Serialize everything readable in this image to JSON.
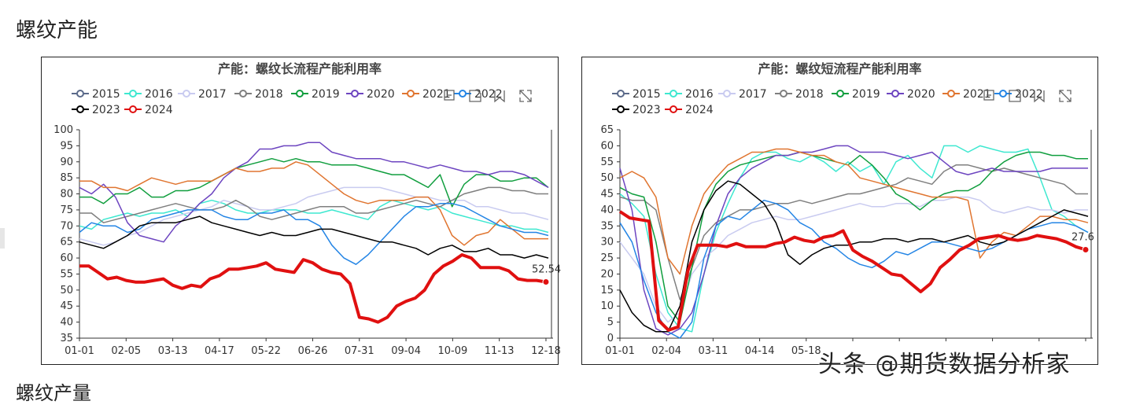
{
  "page_title": "螺纹产能",
  "next_section_title": "螺纹产量",
  "watermark": "头条 @期货数据分析家",
  "toolbox_icons": [
    "restore-icon",
    "save-image-icon",
    "data-zoom-icon",
    "fullscreen-icon"
  ],
  "colors": {
    "2015": "#5b6a8a",
    "2016": "#3ee8d0",
    "2017": "#c9cbf0",
    "2018": "#7f7f7f",
    "2019": "#109e3e",
    "2020": "#6d45c0",
    "2021": "#e07530",
    "2022": "#2485e5",
    "2023": "#000000",
    "2024": "#e01010"
  },
  "chart_data": [
    {
      "type": "line",
      "title": "产能：螺纹长流程产能利用率",
      "x_ticks": [
        "01-01",
        "02-05",
        "03-13",
        "04-17",
        "05-22",
        "06-26",
        "07-31",
        "09-04",
        "10-09",
        "11-13",
        "12-18"
      ],
      "ylim": [
        35,
        100
      ],
      "y_ticks": [
        35,
        40,
        45,
        50,
        55,
        60,
        65,
        70,
        75,
        80,
        85,
        90,
        95,
        100
      ],
      "legend": [
        "2015",
        "2016",
        "2017",
        "2018",
        "2019",
        "2020",
        "2021",
        "2022",
        "2023",
        "2024"
      ],
      "end_label": "52.54",
      "series": [
        {
          "name": "2015",
          "values": []
        },
        {
          "name": "2016",
          "values": [
            70,
            69,
            72,
            73,
            74,
            73,
            74,
            74,
            75,
            73,
            77,
            78,
            77,
            75,
            74,
            74,
            75,
            75,
            75,
            74,
            74,
            75,
            74,
            73,
            72,
            76,
            78,
            77,
            76,
            75,
            76,
            74,
            73,
            72,
            71,
            70,
            70,
            69,
            69,
            68
          ]
        },
        {
          "name": "2017",
          "values": [
            66,
            65,
            64,
            65,
            67,
            68,
            70,
            72,
            73,
            74,
            75,
            76,
            78,
            77,
            76,
            75,
            75,
            76,
            77,
            79,
            80,
            81,
            82,
            82,
            82,
            82,
            81,
            80,
            79,
            79,
            78,
            78,
            78,
            76,
            76,
            75,
            74,
            74,
            73,
            72
          ]
        },
        {
          "name": "2018",
          "values": [
            74,
            74,
            71,
            72,
            73,
            74,
            75,
            76,
            77,
            76,
            75,
            75,
            76,
            78,
            76,
            73,
            72,
            73,
            74,
            75,
            76,
            76,
            76,
            74,
            74,
            75,
            76,
            77,
            78,
            77,
            76,
            78,
            80,
            81,
            82,
            82,
            81,
            81,
            80,
            80
          ]
        },
        {
          "name": "2019",
          "values": [
            79,
            79,
            77,
            80,
            80,
            82,
            79,
            79,
            81,
            81,
            82,
            84,
            86,
            88,
            89,
            90,
            91,
            90,
            91,
            90,
            90,
            89,
            89,
            89,
            88,
            87,
            86,
            86,
            84,
            82,
            86,
            76,
            83,
            86,
            86,
            84,
            84,
            85,
            85,
            82
          ]
        },
        {
          "name": "2020",
          "values": [
            82,
            80,
            83,
            79,
            71,
            67,
            66,
            65,
            70,
            73,
            77,
            80,
            85,
            88,
            90,
            94,
            94,
            95,
            95,
            96,
            96,
            93,
            92,
            91,
            91,
            91,
            90,
            90,
            89,
            88,
            89,
            88,
            87,
            87,
            86,
            87,
            87,
            86,
            84,
            82
          ]
        },
        {
          "name": "2021",
          "values": [
            84,
            84,
            82,
            82,
            81,
            83,
            85,
            84,
            83,
            84,
            84,
            84,
            86,
            88,
            87,
            87,
            88,
            88,
            90,
            89,
            86,
            83,
            80,
            78,
            77,
            78,
            78,
            78,
            79,
            79,
            75,
            67,
            64,
            67,
            68,
            72,
            69,
            66,
            66,
            66
          ]
        },
        {
          "name": "2022",
          "values": [
            68,
            71,
            70,
            70,
            68,
            69,
            72,
            73,
            74,
            75,
            75,
            75,
            73,
            72,
            72,
            74,
            74,
            75,
            72,
            72,
            70,
            64,
            60,
            58,
            61,
            65,
            69,
            73,
            76,
            76,
            77,
            77,
            76,
            74,
            72,
            70,
            69,
            68,
            68,
            67
          ]
        },
        {
          "name": "2023",
          "values": [
            65,
            64,
            63,
            65,
            67,
            70,
            71,
            71,
            71,
            72,
            73,
            71,
            70,
            69,
            68,
            67,
            68,
            67,
            67,
            68,
            69,
            69,
            68,
            67,
            66,
            65,
            65,
            64,
            63,
            61,
            63,
            64,
            62,
            62,
            63,
            61,
            61,
            60,
            61,
            60
          ]
        },
        {
          "name": "2024",
          "values": [
            57.5,
            57.5,
            55.5,
            53.5,
            54,
            53,
            52.5,
            52.5,
            53,
            53.5,
            51.5,
            50.5,
            51.5,
            51,
            53.5,
            54.5,
            56.5,
            56.5,
            57,
            57.5,
            58.5,
            56.5,
            56,
            55.5,
            59.5,
            58.5,
            56.5,
            55.5,
            55,
            52,
            41.5,
            41,
            40,
            41.5,
            45,
            46.5,
            47.5,
            50,
            55,
            57.5,
            59,
            61,
            60,
            57,
            57,
            57,
            56,
            53.5,
            53,
            53,
            52.54
          ]
        }
      ]
    },
    {
      "type": "line",
      "title": "产能：螺纹短流程产能利用率",
      "x_ticks": [
        "01-01",
        "02-04",
        "03-11",
        "04-14",
        "05-18",
        "",
        "",
        "",
        "",
        "",
        ""
      ],
      "ylim": [
        0,
        65
      ],
      "y_ticks": [
        0,
        5,
        10,
        15,
        20,
        25,
        30,
        35,
        40,
        45,
        50,
        55,
        60,
        65
      ],
      "legend": [
        "2015",
        "2016",
        "2017",
        "2018",
        "2019",
        "2020",
        "2021",
        "2022",
        "2023",
        "2024"
      ],
      "end_label": "27.6",
      "series": [
        {
          "name": "2015",
          "values": []
        },
        {
          "name": "2016",
          "values": [
            45,
            42,
            38,
            20,
            8,
            3,
            2,
            20,
            33,
            42,
            50,
            56,
            58,
            58,
            56,
            55,
            57,
            55,
            52,
            55,
            52,
            54,
            48,
            55,
            57,
            53,
            50,
            60,
            60,
            58,
            60,
            59,
            58,
            58,
            59,
            50,
            40,
            38,
            35,
            33
          ]
        },
        {
          "name": "2017",
          "values": [
            30,
            25,
            20,
            10,
            5,
            8,
            20,
            25,
            28,
            32,
            34,
            36,
            37,
            38,
            37,
            37,
            38,
            39,
            40,
            41,
            42,
            41,
            41,
            42,
            42,
            41,
            43,
            43,
            44,
            44,
            43,
            40,
            39,
            40,
            41,
            40,
            40,
            39,
            40,
            40
          ]
        },
        {
          "name": "2018",
          "values": [
            44,
            43,
            43,
            40,
            25,
            12,
            22,
            32,
            36,
            38,
            40,
            40,
            41,
            42,
            42,
            43,
            42,
            43,
            44,
            45,
            45,
            46,
            47,
            48,
            50,
            49,
            48,
            52,
            54,
            54,
            53,
            52,
            53,
            52,
            51,
            50,
            49,
            48,
            45,
            45
          ]
        },
        {
          "name": "2019",
          "values": [
            47,
            45,
            44,
            30,
            10,
            5,
            22,
            40,
            48,
            52,
            54,
            55,
            56,
            57,
            57,
            58,
            57,
            56,
            55,
            54,
            57,
            54,
            50,
            45,
            43,
            40,
            43,
            45,
            46,
            46,
            48,
            52,
            55,
            57,
            58,
            58,
            57,
            57,
            56,
            56
          ]
        },
        {
          "name": "2020",
          "values": [
            53,
            40,
            15,
            3,
            1,
            3,
            8,
            20,
            35,
            45,
            50,
            53,
            55,
            57,
            57,
            58,
            58,
            59,
            60,
            60,
            58,
            58,
            58,
            57,
            56,
            57,
            58,
            55,
            52,
            51,
            52,
            53,
            52,
            52,
            52,
            52,
            53,
            53,
            53,
            53
          ]
        },
        {
          "name": "2021",
          "values": [
            50,
            52,
            50,
            44,
            25,
            20,
            35,
            45,
            50,
            54,
            56,
            58,
            58,
            59,
            59,
            58,
            57,
            57,
            55,
            54,
            50,
            49,
            48,
            47,
            46,
            45,
            44,
            44,
            44,
            43,
            25,
            30,
            33,
            32,
            35,
            38,
            38,
            37,
            37,
            36
          ]
        },
        {
          "name": "2022",
          "values": [
            36,
            30,
            18,
            8,
            2,
            0,
            5,
            25,
            35,
            38,
            37,
            40,
            43,
            42,
            40,
            36,
            34,
            30,
            28,
            25,
            23,
            22,
            24,
            27,
            26,
            28,
            30,
            30,
            29,
            28,
            27,
            28,
            30,
            32,
            34,
            35,
            36,
            36,
            35,
            33
          ]
        },
        {
          "name": "2023",
          "values": [
            15,
            8,
            4,
            2,
            2,
            10,
            30,
            40,
            46,
            49,
            48,
            45,
            42,
            36,
            26,
            23,
            26,
            28,
            29,
            29,
            30,
            30,
            31,
            31,
            30,
            31,
            31,
            30,
            31,
            32,
            30,
            29,
            30,
            32,
            34,
            36,
            38,
            40,
            39,
            38
          ]
        },
        {
          "name": "2024",
          "values": [
            39.5,
            37.5,
            37,
            36.5,
            5.5,
            2.5,
            3.5,
            21,
            29,
            29,
            29,
            28.5,
            29.5,
            28.5,
            28.5,
            28.5,
            29.5,
            30,
            31.5,
            30.5,
            30,
            31.5,
            32,
            33.5,
            27.5,
            25.5,
            24,
            22,
            20,
            19.5,
            17,
            14.5,
            17,
            22,
            24.5,
            27.5,
            29,
            31,
            31.5,
            32,
            31,
            30.5,
            31,
            32,
            31.5,
            31,
            30,
            28.5,
            27.6
          ]
        }
      ]
    }
  ]
}
